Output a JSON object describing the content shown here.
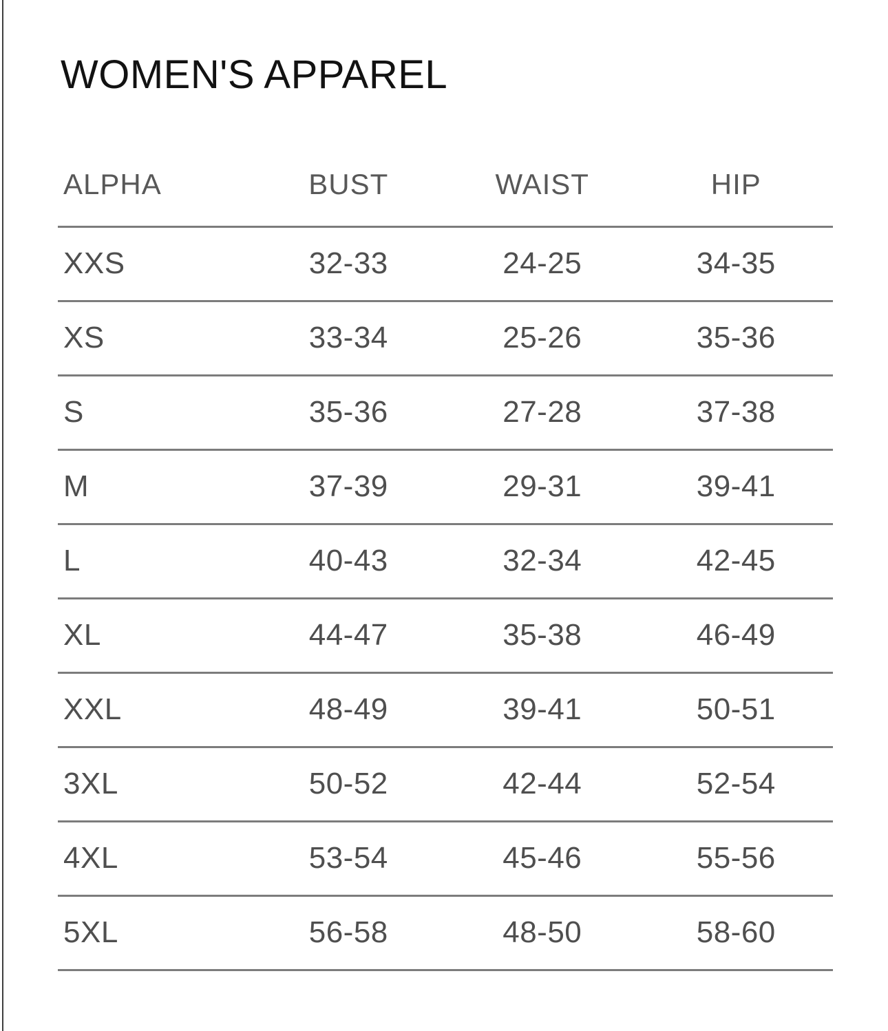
{
  "panel": {
    "title": "WOMEN'S APPAREL"
  },
  "size_chart": {
    "columns": [
      "ALPHA",
      "BUST",
      "WAIST",
      "HIP"
    ],
    "rows": [
      [
        "XXS",
        "32-33",
        "24-25",
        "34-35"
      ],
      [
        "XS",
        "33-34",
        "25-26",
        "35-36"
      ],
      [
        "S",
        "35-36",
        "27-28",
        "37-38"
      ],
      [
        "M",
        "37-39",
        "29-31",
        "39-41"
      ],
      [
        "L",
        "40-43",
        "32-34",
        "42-45"
      ],
      [
        "XL",
        "44-47",
        "35-38",
        "46-49"
      ],
      [
        "XXL",
        "48-49",
        "39-41",
        "50-51"
      ],
      [
        "3XL",
        "50-52",
        "42-44",
        "52-54"
      ],
      [
        "4XL",
        "53-54",
        "45-46",
        "55-56"
      ],
      [
        "5XL",
        "56-58",
        "48-50",
        "58-60"
      ]
    ]
  },
  "colors": {
    "background": "#ffffff",
    "title_text": "#121212",
    "header_text": "#585858",
    "cell_text": "#4f4f4f",
    "rule": "#7c7c7c",
    "left_border": "#3e3e3e"
  }
}
